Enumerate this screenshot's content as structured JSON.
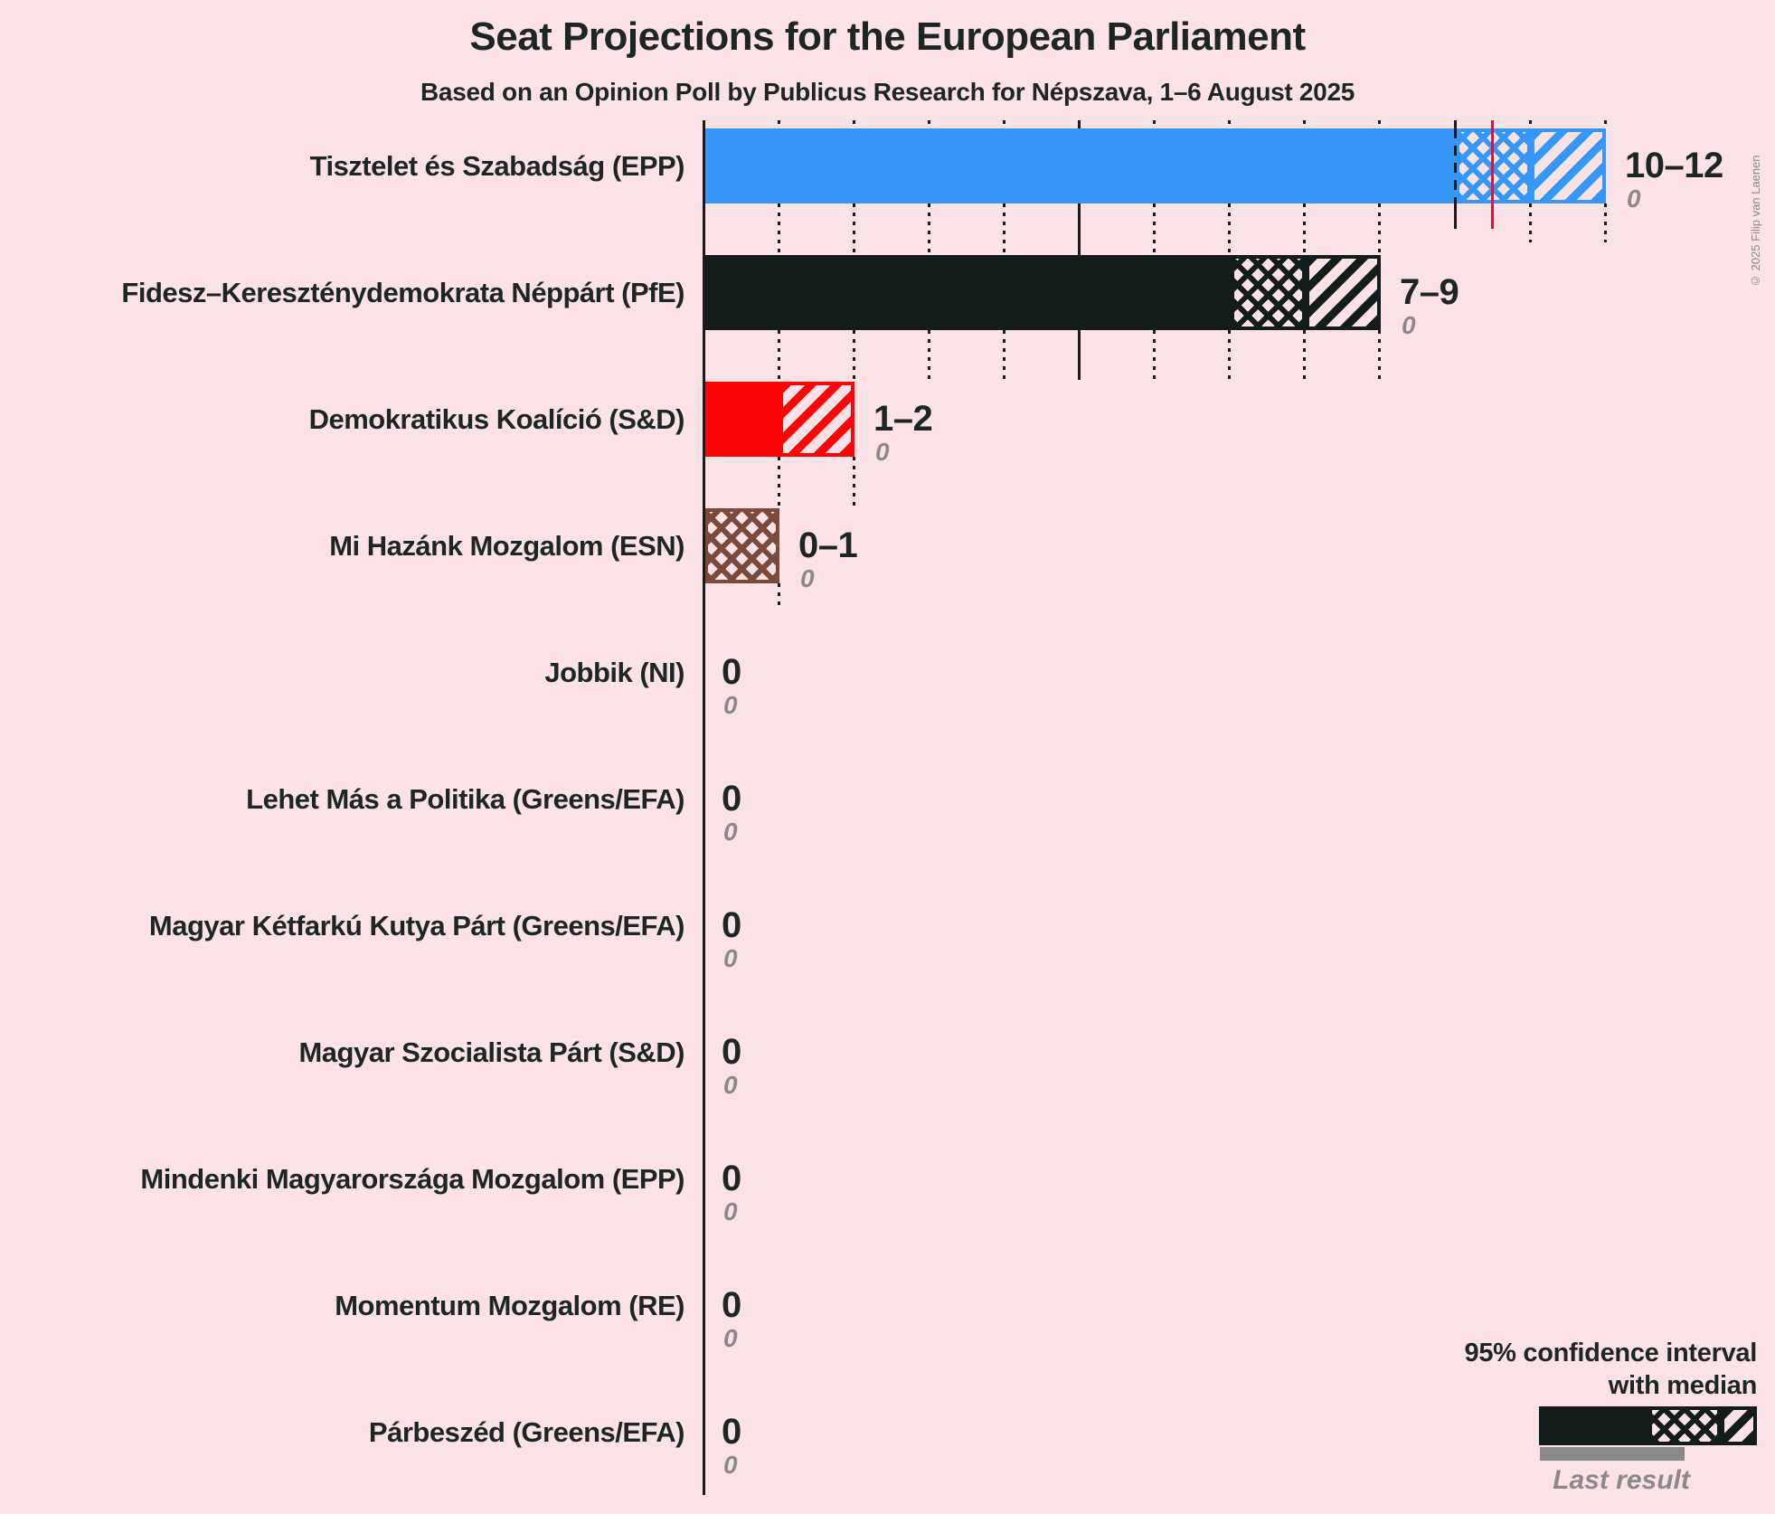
{
  "title": "Seat Projections for the European Parliament",
  "subtitle": "Based on an Opinion Poll by Publicus Research for Népszava, 1–6 August 2025",
  "copyright": "© 2025 Filip van Laenen",
  "legend": {
    "ci_label_line1": "95% confidence interval",
    "ci_label_line2": "with median",
    "last_result_label": "Last result"
  },
  "colors": {
    "background": "#fbe2e7",
    "text_dark": "#1d2624",
    "gridline": "#1a1a1a",
    "majority_line_red": "#dc143c",
    "last_result_gray": "#8a8a8a",
    "legend_sample_black": "#131c1a"
  },
  "chart_data": {
    "type": "bar",
    "orientation": "horizontal",
    "unit": "seats",
    "gridline_every_seats": 1,
    "bold_gridline_every_seats": 5,
    "max_gridline_seat": 12,
    "majority_marker_seats": 10.5,
    "parties": [
      {
        "label": "Tisztelet és Szabadság (EPP)",
        "ci_low": 10,
        "median": 11,
        "ci_high": 12,
        "value_label": "10–12",
        "last_result": "0",
        "color": "#3598f8"
      },
      {
        "label": "Fidesz–Kereszténydemokrata Néppárt (PfE)",
        "ci_low": 7,
        "median": 8,
        "ci_high": 9,
        "value_label": "7–9",
        "last_result": "0",
        "color": "#131c1a"
      },
      {
        "label": "Demokratikus Koalíció (S&D)",
        "ci_low": 1,
        "median": 1,
        "ci_high": 2,
        "value_label": "1–2",
        "last_result": "0",
        "color": "#fb0506"
      },
      {
        "label": "Mi Hazánk Mozgalom (ESN)",
        "ci_low": 0,
        "median": 1,
        "ci_high": 1,
        "value_label": "0–1",
        "last_result": "0",
        "color": "#7b4a3b"
      },
      {
        "label": "Jobbik (NI)",
        "ci_low": 0,
        "median": 0,
        "ci_high": 0,
        "value_label": "0",
        "last_result": "0",
        "color": null
      },
      {
        "label": "Lehet Más a Politika (Greens/EFA)",
        "ci_low": 0,
        "median": 0,
        "ci_high": 0,
        "value_label": "0",
        "last_result": "0",
        "color": null
      },
      {
        "label": "Magyar Kétfarkú Kutya Párt (Greens/EFA)",
        "ci_low": 0,
        "median": 0,
        "ci_high": 0,
        "value_label": "0",
        "last_result": "0",
        "color": null
      },
      {
        "label": "Magyar Szocialista Párt (S&D)",
        "ci_low": 0,
        "median": 0,
        "ci_high": 0,
        "value_label": "0",
        "last_result": "0",
        "color": null
      },
      {
        "label": "Mindenki Magyarországa Mozgalom (EPP)",
        "ci_low": 0,
        "median": 0,
        "ci_high": 0,
        "value_label": "0",
        "last_result": "0",
        "color": null
      },
      {
        "label": "Momentum Mozgalom (RE)",
        "ci_low": 0,
        "median": 0,
        "ci_high": 0,
        "value_label": "0",
        "last_result": "0",
        "color": null
      },
      {
        "label": "Párbeszéd (Greens/EFA)",
        "ci_low": 0,
        "median": 0,
        "ci_high": 0,
        "value_label": "0",
        "last_result": "0",
        "color": null
      }
    ]
  }
}
